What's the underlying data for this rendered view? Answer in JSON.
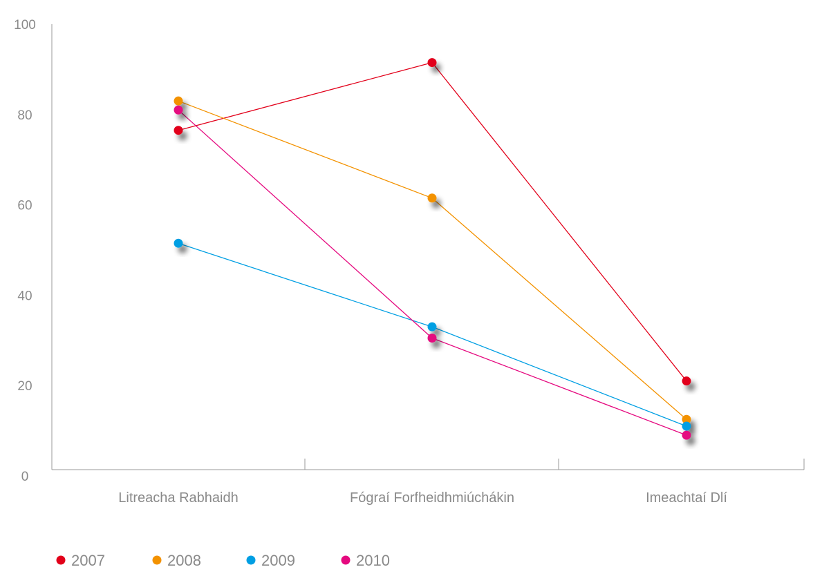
{
  "chart_data": {
    "type": "line",
    "categories": [
      "Litreacha Rabhaidh",
      "Fógraí Forfheidhmiúchákin",
      "Imeachtaí Dlí"
    ],
    "ylim": [
      0,
      100
    ],
    "yticks": [
      0,
      20,
      40,
      60,
      80,
      100
    ],
    "legend_position": "bottom-left",
    "grid": false,
    "series": [
      {
        "name": "2007",
        "color": "#e2001a",
        "values": [
          76.5,
          91.5,
          21.0
        ]
      },
      {
        "name": "2008",
        "color": "#f39200",
        "values": [
          83.0,
          61.5,
          12.5
        ]
      },
      {
        "name": "2009",
        "color": "#009fe3",
        "values": [
          51.5,
          33.0,
          11.0
        ]
      },
      {
        "name": "2010",
        "color": "#e5097f",
        "values": [
          81.0,
          30.5,
          9.0
        ]
      }
    ]
  }
}
